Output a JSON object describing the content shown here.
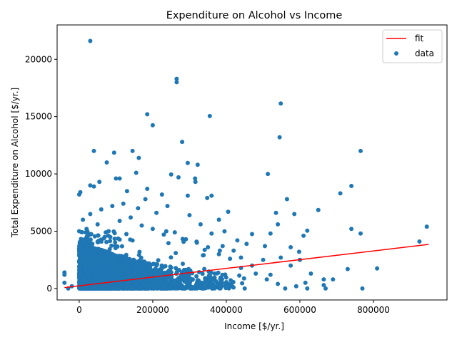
{
  "chart_data": {
    "type": "scatter",
    "title": "Expenditure on Alcohol vs Income",
    "xlabel": "Income [$/yr.]",
    "ylabel": "Total Expenditure on Alcohol [$/yr.]",
    "xlim": [
      -60000,
      1000000
    ],
    "ylim": [
      -1000,
      23000
    ],
    "xticks": [
      0,
      200000,
      400000,
      600000,
      800000
    ],
    "yticks": [
      0,
      5000,
      10000,
      15000,
      20000
    ],
    "xtick_labels": [
      "0",
      "200000",
      "400000",
      "600000",
      "800000"
    ],
    "ytick_labels": [
      "0",
      "5000",
      "10000",
      "15000",
      "20000"
    ],
    "legend_position": "top-right",
    "colors": {
      "fit": "#ff0000",
      "data": "#1f77b4"
    },
    "series": [
      {
        "name": "fit",
        "kind": "line",
        "x": [
          -40000,
          950000
        ],
        "y": [
          80,
          3850
        ]
      },
      {
        "name": "data",
        "kind": "scatter",
        "points": [
          [
            30000,
            21600
          ],
          [
            265000,
            18300
          ],
          [
            265000,
            18000
          ],
          [
            185000,
            15200
          ],
          [
            355000,
            15050
          ],
          [
            548000,
            16150
          ],
          [
            200000,
            14250
          ],
          [
            545000,
            13200
          ],
          [
            280000,
            12800
          ],
          [
            40000,
            12000
          ],
          [
            145000,
            12000
          ],
          [
            95000,
            11850
          ],
          [
            162000,
            11400
          ],
          [
            765000,
            12000
          ],
          [
            75000,
            11000
          ],
          [
            295000,
            10950
          ],
          [
            322000,
            10800
          ],
          [
            155000,
            10100
          ],
          [
            513000,
            10000
          ],
          [
            250000,
            9950
          ],
          [
            270000,
            9700
          ],
          [
            100000,
            9600
          ],
          [
            110000,
            9600
          ],
          [
            315000,
            9600
          ],
          [
            316000,
            9300
          ],
          [
            30000,
            9000
          ],
          [
            40000,
            8900
          ],
          [
            55000,
            9300
          ],
          [
            740000,
            8950
          ],
          [
            710000,
            8300
          ],
          [
            0,
            8200
          ],
          [
            3000,
            8400
          ],
          [
            225000,
            8200
          ],
          [
            295000,
            8100
          ],
          [
            360000,
            8100
          ],
          [
            348000,
            7900
          ],
          [
            565000,
            7800
          ],
          [
            130000,
            8500
          ],
          [
            185000,
            8700
          ],
          [
            650000,
            6850
          ],
          [
            405000,
            6700
          ],
          [
            585000,
            6500
          ],
          [
            535000,
            6600
          ],
          [
            740000,
            5200
          ],
          [
            765000,
            4800
          ],
          [
            945000,
            5400
          ],
          [
            925000,
            4100
          ],
          [
            610000,
            4600
          ],
          [
            620000,
            5050
          ],
          [
            520000,
            4800
          ],
          [
            470000,
            4750
          ],
          [
            505000,
            3700
          ],
          [
            575000,
            3600
          ],
          [
            598000,
            3200
          ],
          [
            600000,
            2500
          ],
          [
            455000,
            3900
          ],
          [
            380000,
            6000
          ],
          [
            430000,
            4200
          ],
          [
            540000,
            5600
          ],
          [
            548000,
            2700
          ],
          [
            730000,
            1700
          ],
          [
            810000,
            1750
          ],
          [
            690000,
            800
          ],
          [
            665000,
            800
          ],
          [
            665000,
            300
          ],
          [
            670000,
            0
          ],
          [
            770000,
            0
          ],
          [
            615000,
            500
          ],
          [
            630000,
            1300
          ],
          [
            575000,
            2000
          ],
          [
            520000,
            1200
          ],
          [
            470000,
            2000
          ],
          [
            500000,
            2500
          ],
          [
            440000,
            2700
          ],
          [
            420000,
            3300
          ],
          [
            390000,
            3700
          ],
          [
            360000,
            4800
          ],
          [
            330000,
            5600
          ],
          [
            300000,
            6400
          ],
          [
            240000,
            7200
          ],
          [
            210000,
            6600
          ],
          [
            180000,
            7800
          ],
          [
            160000,
            7000
          ],
          [
            120000,
            7400
          ],
          [
            90000,
            7200
          ],
          [
            60000,
            6900
          ],
          [
            30000,
            6500
          ],
          [
            10000,
            6000
          ],
          [
            0,
            5000
          ],
          [
            5000,
            4300
          ],
          [
            -40000,
            1400
          ],
          [
            -40000,
            1200
          ],
          [
            -40000,
            500
          ],
          [
            -30000,
            0
          ],
          [
            -20000,
            200
          ],
          [
            0,
            1600
          ],
          [
            0,
            3500
          ],
          [
            0,
            2300
          ],
          [
            20000,
            5200
          ],
          [
            50000,
            5600
          ],
          [
            80000,
            5000
          ],
          [
            110000,
            5900
          ],
          [
            140000,
            6200
          ],
          [
            170000,
            5500
          ],
          [
            200000,
            5200
          ],
          [
            230000,
            4700
          ],
          [
            260000,
            4900
          ],
          [
            290000,
            4300
          ],
          [
            320000,
            4000
          ],
          [
            350000,
            3600
          ],
          [
            380000,
            3000
          ],
          [
            410000,
            2600
          ],
          [
            440000,
            1800
          ],
          [
            480000,
            1300
          ],
          [
            510000,
            800
          ],
          [
            540000,
            400
          ],
          [
            560000,
            0
          ],
          [
            590000,
            200
          ],
          [
            620000,
            0
          ],
          [
            450000,
            0
          ]
        ]
      }
    ]
  }
}
